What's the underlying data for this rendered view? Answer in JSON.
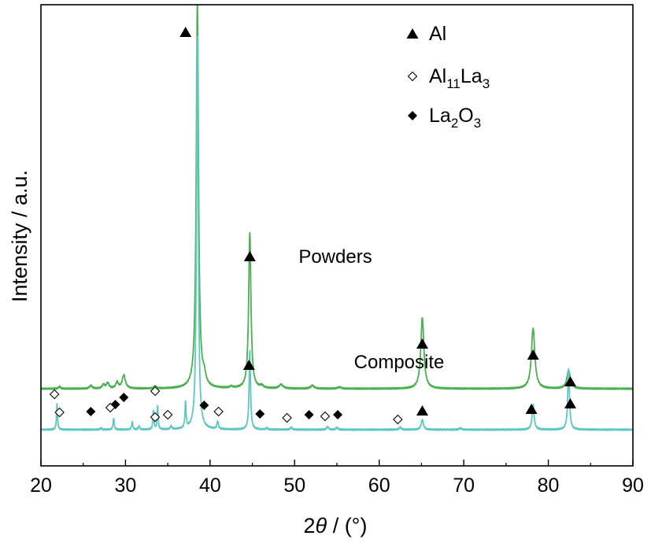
{
  "chart_data": {
    "type": "line",
    "xlabel": "2θ / (°)",
    "xlabel_parts": {
      "var": "2θ",
      "unit": " / (°)"
    },
    "ylabel": "Intensity / a.u.",
    "xlim": [
      20,
      90
    ],
    "xticks": [
      20,
      30,
      40,
      50,
      60,
      70,
      80,
      90
    ],
    "y_ticks_shown": false,
    "grid": false,
    "series": [
      {
        "name": "Powders",
        "color": "#4caf50",
        "baseline": 0.52,
        "peaks": [
          {
            "x": 22.2,
            "h": 0.03,
            "w": 0.12
          },
          {
            "x": 25.9,
            "h": 0.04,
            "w": 0.18
          },
          {
            "x": 27.4,
            "h": 0.05,
            "w": 0.18
          },
          {
            "x": 27.9,
            "h": 0.07,
            "w": 0.18
          },
          {
            "x": 29.0,
            "h": 0.08,
            "w": 0.18
          },
          {
            "x": 29.8,
            "h": 0.17,
            "w": 0.22
          },
          {
            "x": 33.5,
            "h": 0.03,
            "w": 0.15
          },
          {
            "x": 38.5,
            "h": 4.9,
            "w": 0.16
          },
          {
            "x": 39.3,
            "h": 0.12,
            "w": 0.22
          },
          {
            "x": 42.5,
            "h": 0.02,
            "w": 0.2
          },
          {
            "x": 44.7,
            "h": 1.98,
            "w": 0.16
          },
          {
            "x": 46.1,
            "h": 0.03,
            "w": 0.2
          },
          {
            "x": 48.4,
            "h": 0.05,
            "w": 0.28
          },
          {
            "x": 52.1,
            "h": 0.04,
            "w": 0.25
          },
          {
            "x": 55.3,
            "h": 0.02,
            "w": 0.25
          },
          {
            "x": 65.1,
            "h": 0.9,
            "w": 0.22
          },
          {
            "x": 78.2,
            "h": 0.77,
            "w": 0.24
          },
          {
            "x": 82.4,
            "h": 0.23,
            "w": 0.24
          }
        ]
      },
      {
        "name": "Composite",
        "color": "#5ec8c0",
        "baseline": 0.0,
        "peaks": [
          {
            "x": 21.9,
            "h": 0.33,
            "w": 0.07
          },
          {
            "x": 27.1,
            "h": 0.02,
            "w": 0.1
          },
          {
            "x": 28.6,
            "h": 0.14,
            "w": 0.08
          },
          {
            "x": 30.8,
            "h": 0.1,
            "w": 0.08
          },
          {
            "x": 31.6,
            "h": 0.05,
            "w": 0.08
          },
          {
            "x": 33.3,
            "h": 0.24,
            "w": 0.07
          },
          {
            "x": 33.8,
            "h": 0.3,
            "w": 0.07
          },
          {
            "x": 35.4,
            "h": 0.04,
            "w": 0.1
          },
          {
            "x": 37.1,
            "h": 0.32,
            "w": 0.08
          },
          {
            "x": 38.5,
            "h": 5.0,
            "w": 0.12
          },
          {
            "x": 40.9,
            "h": 0.1,
            "w": 0.1
          },
          {
            "x": 44.7,
            "h": 1.0,
            "w": 0.1
          },
          {
            "x": 46.7,
            "h": 0.02,
            "w": 0.12
          },
          {
            "x": 49.6,
            "h": 0.03,
            "w": 0.12
          },
          {
            "x": 53.9,
            "h": 0.04,
            "w": 0.12
          },
          {
            "x": 55.0,
            "h": 0.03,
            "w": 0.12
          },
          {
            "x": 62.5,
            "h": 0.03,
            "w": 0.15
          },
          {
            "x": 65.1,
            "h": 0.13,
            "w": 0.15
          },
          {
            "x": 69.6,
            "h": 0.02,
            "w": 0.15
          },
          {
            "x": 78.2,
            "h": 0.32,
            "w": 0.14
          },
          {
            "x": 82.4,
            "h": 0.78,
            "w": 0.12
          }
        ]
      }
    ],
    "markers": [
      {
        "phase": "Al",
        "series": "Powders",
        "x": 37.1,
        "height": 5.05
      },
      {
        "phase": "Al",
        "series": "Powders",
        "x": 44.7,
        "height": 2.2
      },
      {
        "phase": "Al",
        "series": "Powders",
        "x": 65.1,
        "height": 1.09
      },
      {
        "phase": "Al",
        "series": "Powders",
        "x": 78.2,
        "height": 0.95
      },
      {
        "phase": "Al",
        "series": "Powders",
        "x": 82.6,
        "height": 0.33
      },
      {
        "phase": "Al11La3",
        "series": "Powders",
        "x": 22.2,
        "height": 0.22
      },
      {
        "phase": "Al11La3",
        "series": "Powders",
        "x": 33.5,
        "height": 0.16
      },
      {
        "phase": "La2O3",
        "series": "Powders",
        "x": 25.9,
        "height": 0.23
      },
      {
        "phase": "La2O3",
        "series": "Powders",
        "x": 28.8,
        "height": 0.32
      },
      {
        "phase": "La2O3",
        "series": "Powders",
        "x": 29.8,
        "height": 0.41
      },
      {
        "phase": "La2O3",
        "series": "Powders",
        "x": 39.3,
        "height": 0.31
      },
      {
        "phase": "La2O3",
        "series": "Powders",
        "x": 45.9,
        "height": 0.2
      },
      {
        "phase": "La2O3",
        "series": "Powders",
        "x": 51.7,
        "height": 0.19
      },
      {
        "phase": "La2O3",
        "series": "Powders",
        "x": 55.1,
        "height": 0.19
      },
      {
        "phase": "Al",
        "series": "Composite",
        "x": 44.6,
        "height": 0.82
      },
      {
        "phase": "Al",
        "series": "Composite",
        "x": 65.1,
        "height": 0.24
      },
      {
        "phase": "Al",
        "series": "Composite",
        "x": 78.0,
        "height": 0.26
      },
      {
        "phase": "Al",
        "series": "Composite",
        "x": 82.6,
        "height": 0.61
      },
      {
        "phase": "Al11La3",
        "series": "Composite",
        "x": 21.6,
        "height": 0.45
      },
      {
        "phase": "Al11La3",
        "series": "Composite",
        "x": 28.2,
        "height": 0.28
      },
      {
        "phase": "Al11La3",
        "series": "Composite",
        "x": 33.5,
        "height": 0.49
      },
      {
        "phase": "Al11La3",
        "series": "Composite",
        "x": 35.0,
        "height": 0.19
      },
      {
        "phase": "Al11La3",
        "series": "Composite",
        "x": 41.0,
        "height": 0.23
      },
      {
        "phase": "Al11La3",
        "series": "Composite",
        "x": 49.1,
        "height": 0.15
      },
      {
        "phase": "Al11La3",
        "series": "Composite",
        "x": 53.6,
        "height": 0.17
      },
      {
        "phase": "Al11La3",
        "series": "Composite",
        "x": 62.2,
        "height": 0.13
      }
    ],
    "legend": {
      "placement": "top-center",
      "entries": [
        {
          "key": "Al",
          "symbol": "filled-triangle",
          "parts": [
            [
              "Al",
              ""
            ]
          ]
        },
        {
          "key": "Al11La3",
          "symbol": "open-diamond",
          "parts": [
            [
              "Al",
              ""
            ],
            [
              "11",
              "sub"
            ],
            [
              "La",
              ""
            ],
            [
              "3",
              "sub"
            ]
          ]
        },
        {
          "key": "La2O3",
          "symbol": "filled-diamond",
          "parts": [
            [
              "La",
              ""
            ],
            [
              "2",
              "sub"
            ],
            [
              "O",
              ""
            ],
            [
              "3",
              "sub"
            ]
          ]
        }
      ]
    }
  }
}
